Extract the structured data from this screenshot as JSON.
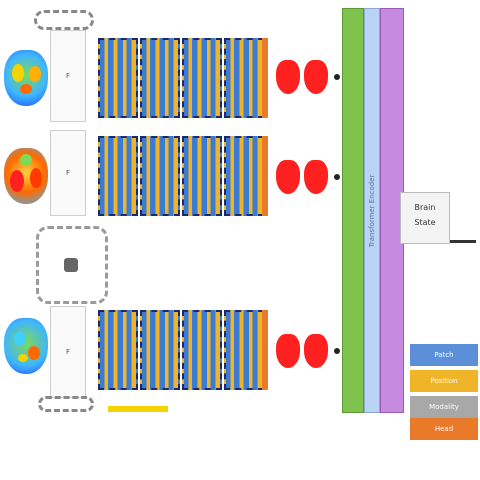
{
  "rows": [
    {
      "feature_label": "F"
    },
    {
      "feature_label": "F"
    },
    {
      "feature_label": "F"
    }
  ],
  "encoder_bars": {
    "green_label": "",
    "blue_label": "Transformer Encoder",
    "purple_label": ""
  },
  "output": {
    "line1": "Brain",
    "line2": "State"
  },
  "legend": [
    {
      "label": "Patch",
      "color": "#5b8fd9"
    },
    {
      "label": "Position",
      "color": "#f0b429"
    },
    {
      "label": "Modality",
      "color": "#a8a8a8"
    },
    {
      "label": "Head",
      "color": "#e87a2a"
    }
  ],
  "colors": {
    "green": "#7fc34f",
    "light_blue": "#b9d4f5",
    "purple": "#c68be0",
    "red": "#ff2020"
  }
}
